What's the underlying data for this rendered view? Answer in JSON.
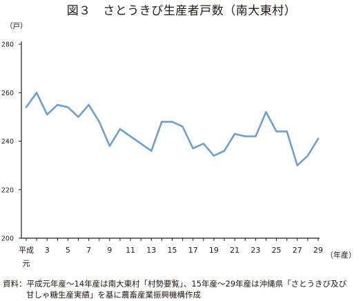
{
  "title": "図３　さとうきび生産者戸数（南大東村）",
  "note": {
    "line1": "資料：平成元年産～14年産は南大東村「村勢要覧」、15年産～29年産は沖縄県「さとうきび及び",
    "line2": "甘しゃ糖生産実績」を基に農畜産業振興機構作成"
  },
  "chart_data": {
    "type": "line",
    "title": "図３　さとうきび生産者戸数（南大東村）",
    "ylabel": "（戸）",
    "xlabel": "（年産）",
    "ylim": [
      200,
      280
    ],
    "yticks": [
      200,
      220,
      240,
      260,
      280
    ],
    "x": [
      1,
      2,
      3,
      4,
      5,
      6,
      7,
      8,
      9,
      10,
      11,
      12,
      13,
      14,
      15,
      16,
      17,
      18,
      19,
      20,
      21,
      22,
      23,
      24,
      25,
      26,
      27,
      28,
      29
    ],
    "xtick_labels": [
      "平成元",
      "3",
      "5",
      "7",
      "9",
      "11",
      "13",
      "15",
      "17",
      "19",
      "21",
      "23",
      "25",
      "27",
      "29"
    ],
    "xtick_positions": [
      1,
      3,
      5,
      7,
      9,
      11,
      13,
      15,
      17,
      19,
      21,
      23,
      25,
      27,
      29
    ],
    "values": [
      254,
      260,
      251,
      255,
      254,
      250,
      255,
      248,
      238,
      245,
      242,
      239,
      236,
      248,
      248,
      246,
      237,
      239,
      234,
      236,
      243,
      242,
      242,
      252,
      244,
      244,
      230,
      234,
      241
    ],
    "line_color": "#6a9fd6",
    "axis_color": "#231815",
    "grid": false,
    "legend": "none"
  }
}
